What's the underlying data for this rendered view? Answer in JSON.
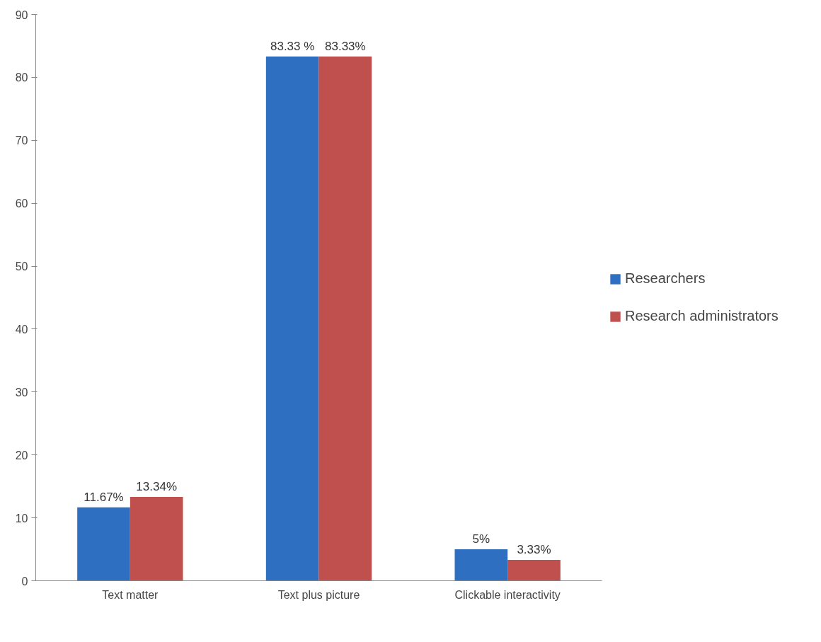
{
  "chart_data": {
    "type": "bar",
    "categories": [
      "Text matter",
      "Text plus picture",
      "Clickable interactivity"
    ],
    "series": [
      {
        "name": "Researchers",
        "color": "#2f6fc2",
        "values": [
          11.67,
          83.33,
          5
        ],
        "value_labels": [
          "11.67%",
          "83.33 %",
          "5%"
        ]
      },
      {
        "name": "Research administrators",
        "color": "#c0504d",
        "values": [
          13.34,
          83.33,
          3.33
        ],
        "value_labels": [
          "13.34%",
          "83.33%",
          "3.33%"
        ]
      }
    ],
    "ylim": [
      0,
      90
    ],
    "yticks": [
      0,
      10,
      20,
      30,
      40,
      50,
      60,
      70,
      80,
      90
    ],
    "grid": false,
    "legend": "right"
  }
}
